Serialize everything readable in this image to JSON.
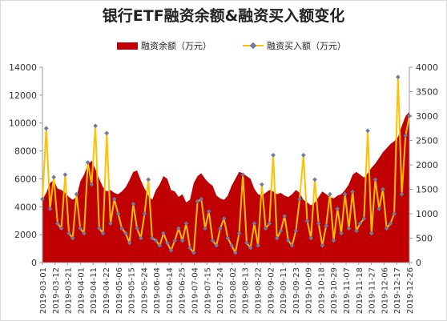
{
  "chart_data": {
    "type": "area+line",
    "title": "银行ETF融资余额&融资买入额变化",
    "series": [
      {
        "name": "融资余额（万元）",
        "axis": "left",
        "type": "area",
        "color": "#c00000"
      },
      {
        "name": "融资买入额（万元）",
        "axis": "right",
        "type": "line",
        "color": "#ffc000",
        "marker_color": "#6e7aa3"
      }
    ],
    "y_left": {
      "min": 0,
      "max": 14000,
      "ticks": [
        "0",
        "2000",
        "4000",
        "6000",
        "8000",
        "10000",
        "12000",
        "14000"
      ]
    },
    "y_right": {
      "min": 0,
      "max": 4000,
      "ticks": [
        "0",
        "500",
        "1000",
        "1500",
        "2000",
        "2500",
        "3000",
        "3500",
        "4000"
      ]
    },
    "x_tick_labels": [
      "2019-03-01",
      "2019-03-12",
      "2019-03-21",
      "2019-04-01",
      "2019-04-11",
      "2019-04-22",
      "2019-05-06",
      "2019-05-15",
      "2019-05-24",
      "2019-06-04",
      "2019-06-14",
      "2019-06-25",
      "2019-07-04",
      "2019-07-15",
      "2019-07-24",
      "2019-08-02",
      "2019-08-13",
      "2019-08-22",
      "2019-09-02",
      "2019-09-11",
      "2019-09-23",
      "2019-10-09",
      "2019-10-18",
      "2019-10-29",
      "2019-11-07",
      "2019-11-18",
      "2019-11-27",
      "2019-12-06",
      "2019-12-17",
      "2019-12-26"
    ],
    "balance_values": [
      4500,
      5000,
      5700,
      5900,
      5300,
      5200,
      5000,
      4700,
      4500,
      4700,
      5800,
      6300,
      7000,
      7300,
      6700,
      6000,
      5400,
      5100,
      5200,
      5000,
      4900,
      5100,
      5400,
      5900,
      6500,
      6600,
      5900,
      5300,
      4800,
      4500,
      5200,
      5600,
      6200,
      6000,
      5200,
      5100,
      4700,
      4900,
      4300,
      4500,
      5700,
      6200,
      6400,
      6000,
      5700,
      5500,
      4800,
      4600,
      4500,
      4800,
      5500,
      6000,
      6500,
      6400,
      6200,
      6000,
      5300,
      4900,
      4800,
      5000,
      5200,
      5100,
      4900,
      5000,
      4800,
      4700,
      4900,
      5200,
      5000,
      4500,
      4300,
      4100,
      4300,
      4700,
      5100,
      4900,
      4700,
      4600,
      4800,
      4900,
      5200,
      5600,
      6300,
      6500,
      6300,
      6100,
      6400,
      6800,
      7100,
      7500,
      7900,
      8200,
      8500,
      8700,
      9000,
      9800,
      10500,
      10800
    ],
    "purchase_values": [
      1300,
      2750,
      1100,
      1750,
      800,
      700,
      1800,
      600,
      500,
      1400,
      700,
      600,
      2050,
      1600,
      2800,
      700,
      600,
      2650,
      800,
      1300,
      1000,
      700,
      600,
      400,
      1200,
      700,
      500,
      1000,
      1700,
      500,
      450,
      350,
      600,
      400,
      250,
      450,
      700,
      450,
      800,
      300,
      200,
      1250,
      1300,
      700,
      1050,
      450,
      350,
      700,
      900,
      500,
      350,
      200,
      600,
      1800,
      400,
      300,
      800,
      350,
      1600,
      700,
      800,
      2200,
      500,
      650,
      950,
      450,
      350,
      650,
      1300,
      2200,
      850,
      500,
      1700,
      800,
      350,
      750,
      1400,
      450,
      1100,
      600,
      1400,
      700,
      1450,
      650,
      800,
      900,
      2700,
      600,
      1700,
      1100,
      1500,
      700,
      800,
      1000,
      3800,
      1400,
      2600,
      3000
    ]
  }
}
